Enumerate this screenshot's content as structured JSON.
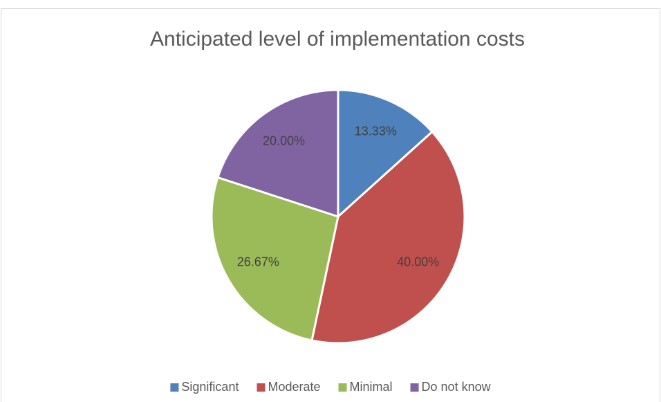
{
  "chart_data": {
    "type": "pie",
    "title": "Anticipated level of implementation costs",
    "categories": [
      "Significant",
      "Moderate",
      "Minimal",
      "Do not know"
    ],
    "values": [
      13.33,
      40,
      26.67,
      20
    ],
    "value_labels": [
      "13.33%",
      "40.00%",
      "26.67%",
      "20.00%"
    ],
    "colors": [
      "#4f81bd",
      "#c0504d",
      "#9bbb59",
      "#8064a2"
    ],
    "legend": "bottom"
  }
}
